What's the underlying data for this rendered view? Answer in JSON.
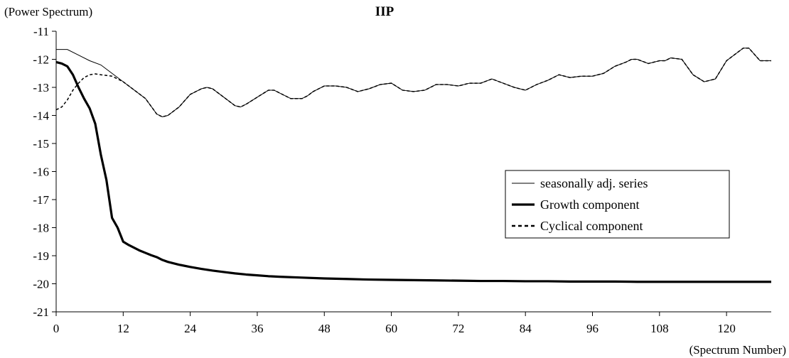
{
  "chart_data": {
    "type": "line",
    "title": "IIP",
    "ylabel": "(Power Spectrum)",
    "xlabel": "(Spectrum Number)",
    "xlim": [
      0,
      128
    ],
    "ylim": [
      -21,
      -11
    ],
    "xticks": [
      0,
      12,
      24,
      36,
      48,
      60,
      72,
      84,
      96,
      108,
      120
    ],
    "yticks": [
      -11,
      -12,
      -13,
      -14,
      -15,
      -16,
      -17,
      -18,
      -19,
      -20,
      -21
    ],
    "grid": false,
    "legend_position": "right",
    "series": [
      {
        "name": "seasonally adj. series",
        "style": "thin-solid",
        "x": [
          0,
          2,
          4,
          6,
          8,
          10,
          12,
          14,
          16,
          18,
          19,
          20,
          22,
          24,
          26,
          27,
          28,
          30,
          32,
          33,
          34,
          36,
          38,
          39,
          40,
          42,
          44,
          45,
          46,
          48,
          50,
          52,
          54,
          56,
          58,
          60,
          62,
          64,
          66,
          68,
          70,
          72,
          74,
          76,
          78,
          80,
          82,
          84,
          86,
          88,
          90,
          92,
          94,
          96,
          98,
          100,
          102,
          103,
          104,
          106,
          108,
          109,
          110,
          112,
          114,
          116,
          118,
          120,
          122,
          123,
          124,
          126,
          128
        ],
        "values": [
          -11.65,
          -11.65,
          -11.85,
          -12.05,
          -12.2,
          -12.5,
          -12.8,
          -13.1,
          -13.4,
          -13.95,
          -14.05,
          -14.0,
          -13.7,
          -13.25,
          -13.05,
          -13.0,
          -13.05,
          -13.35,
          -13.65,
          -13.7,
          -13.6,
          -13.35,
          -13.1,
          -13.1,
          -13.2,
          -13.4,
          -13.4,
          -13.3,
          -13.15,
          -12.95,
          -12.95,
          -13.0,
          -13.15,
          -13.05,
          -12.9,
          -12.85,
          -13.1,
          -13.15,
          -13.1,
          -12.9,
          -12.9,
          -12.95,
          -12.85,
          -12.85,
          -12.7,
          -12.85,
          -13.0,
          -13.1,
          -12.9,
          -12.75,
          -12.55,
          -12.65,
          -12.6,
          -12.6,
          -12.5,
          -12.25,
          -12.1,
          -12.0,
          -12.0,
          -12.15,
          -12.05,
          -12.05,
          -11.95,
          -12.0,
          -12.55,
          -12.8,
          -12.7,
          -12.05,
          -11.75,
          -11.6,
          -11.6,
          -12.05,
          -12.05
        ]
      },
      {
        "name": "Growth component",
        "style": "thick-solid",
        "x": [
          0,
          1,
          2,
          3,
          4,
          5,
          6,
          7,
          8,
          9,
          10,
          11,
          12,
          13,
          14,
          15,
          16,
          17,
          18,
          19,
          20,
          22,
          24,
          26,
          28,
          30,
          32,
          34,
          36,
          38,
          40,
          44,
          48,
          52,
          56,
          60,
          64,
          68,
          72,
          76,
          80,
          84,
          88,
          92,
          96,
          100,
          104,
          108,
          112,
          116,
          120,
          124,
          128
        ],
        "values": [
          -12.1,
          -12.15,
          -12.25,
          -12.55,
          -13.0,
          -13.4,
          -13.75,
          -14.3,
          -15.4,
          -16.3,
          -17.65,
          -18.0,
          -18.5,
          -18.62,
          -18.72,
          -18.82,
          -18.9,
          -18.98,
          -19.05,
          -19.15,
          -19.22,
          -19.32,
          -19.4,
          -19.47,
          -19.53,
          -19.58,
          -19.63,
          -19.67,
          -19.7,
          -19.73,
          -19.75,
          -19.78,
          -19.81,
          -19.83,
          -19.85,
          -19.86,
          -19.87,
          -19.88,
          -19.89,
          -19.9,
          -19.9,
          -19.91,
          -19.91,
          -19.92,
          -19.92,
          -19.92,
          -19.93,
          -19.93,
          -19.93,
          -19.93,
          -19.93,
          -19.93,
          -19.93
        ]
      },
      {
        "name": "Cyclical component",
        "style": "dashed",
        "x": [
          0,
          1,
          2,
          3,
          4,
          5,
          6,
          7,
          8,
          10,
          12,
          14,
          16,
          18,
          19,
          20,
          22,
          24,
          26,
          27,
          28,
          30,
          32,
          33,
          34,
          36,
          38,
          39,
          40,
          42,
          44,
          45,
          46,
          48,
          50,
          52,
          54,
          56,
          58,
          60,
          62,
          64,
          66,
          68,
          70,
          72,
          74,
          76,
          78,
          80,
          82,
          84,
          86,
          88,
          90,
          92,
          94,
          96,
          98,
          100,
          102,
          103,
          104,
          106,
          108,
          109,
          110,
          112,
          114,
          116,
          118,
          120,
          122,
          123,
          124,
          126,
          128
        ],
        "values": [
          -13.8,
          -13.7,
          -13.45,
          -13.1,
          -12.85,
          -12.65,
          -12.55,
          -12.52,
          -12.55,
          -12.6,
          -12.8,
          -13.1,
          -13.4,
          -13.95,
          -14.05,
          -14.0,
          -13.7,
          -13.25,
          -13.05,
          -13.0,
          -13.05,
          -13.35,
          -13.65,
          -13.7,
          -13.6,
          -13.35,
          -13.1,
          -13.1,
          -13.2,
          -13.4,
          -13.4,
          -13.3,
          -13.15,
          -12.95,
          -12.95,
          -13.0,
          -13.15,
          -13.05,
          -12.9,
          -12.85,
          -13.1,
          -13.15,
          -13.1,
          -12.9,
          -12.9,
          -12.95,
          -12.85,
          -12.85,
          -12.7,
          -12.85,
          -13.0,
          -13.1,
          -12.9,
          -12.75,
          -12.55,
          -12.65,
          -12.6,
          -12.6,
          -12.5,
          -12.25,
          -12.1,
          -12.0,
          -12.0,
          -12.15,
          -12.05,
          -12.05,
          -11.95,
          -12.0,
          -12.55,
          -12.8,
          -12.7,
          -12.05,
          -11.75,
          -11.6,
          -11.6,
          -12.05,
          -12.05
        ]
      }
    ]
  }
}
